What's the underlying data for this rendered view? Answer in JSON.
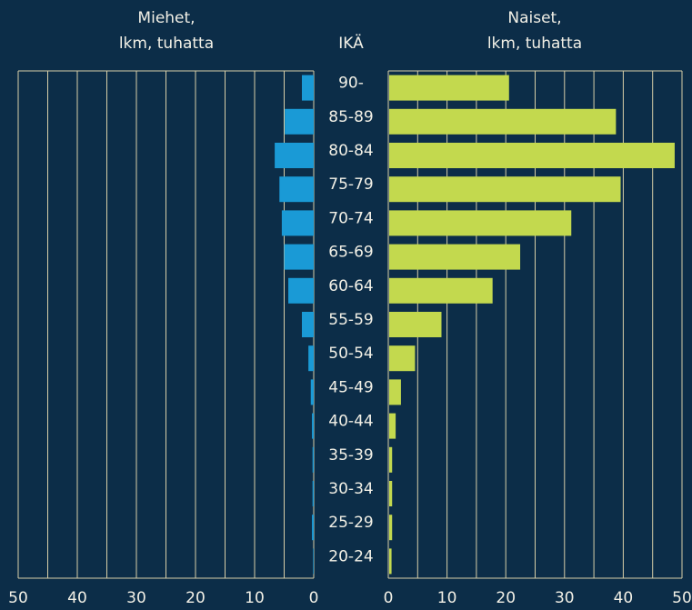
{
  "chart_data": {
    "type": "pyramid",
    "category_label": "IKÄ",
    "categories": [
      "90-",
      "85-89",
      "80-84",
      "75-79",
      "70-74",
      "65-69",
      "60-64",
      "55-59",
      "50-54",
      "45-49",
      "40-44",
      "35-39",
      "30-34",
      "25-29",
      "20-24"
    ],
    "series": [
      {
        "name": "Miehet,\nlkm, tuhatta",
        "color": "#1a9ad6",
        "side": "left",
        "values": [
          2.0,
          4.9,
          6.6,
          5.8,
          5.4,
          5.0,
          4.3,
          2.0,
          0.9,
          0.5,
          0.3,
          0.2,
          0.2,
          0.3,
          0.1
        ]
      },
      {
        "name": "Naiset,\nlkm, tuhatta",
        "color": "#c3d94e",
        "side": "right",
        "values": [
          20.4,
          38.6,
          48.6,
          39.4,
          31.0,
          22.3,
          17.6,
          8.9,
          4.4,
          2.0,
          1.1,
          0.5,
          0.5,
          0.5,
          0.4
        ]
      }
    ],
    "xlim": [
      0,
      50
    ],
    "xticks": [
      0,
      10,
      20,
      30,
      40,
      50
    ],
    "gridlines": [
      0,
      5,
      10,
      15,
      20,
      25,
      30,
      35,
      40,
      45,
      50
    ],
    "grid": true
  }
}
